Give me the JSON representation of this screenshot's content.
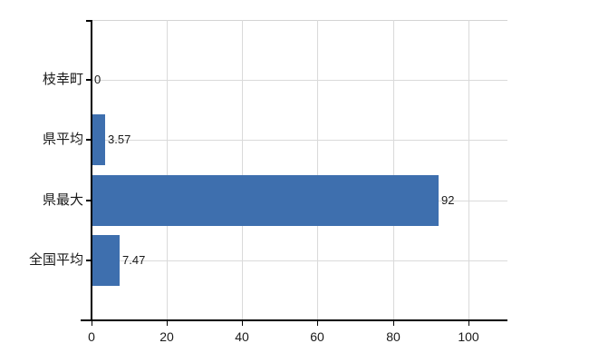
{
  "chart_data": {
    "type": "bar",
    "orientation": "horizontal",
    "title": "",
    "categories": [
      "枝幸町",
      "県平均",
      "県最大",
      "全国平均"
    ],
    "values": [
      0,
      3.57,
      92,
      7.47
    ],
    "value_labels": [
      "0",
      "3.57",
      "92",
      "7.47"
    ],
    "x_ticks": [
      0,
      20,
      40,
      60,
      80,
      100
    ],
    "x_tick_labels": [
      "0",
      "20",
      "40",
      "60",
      "80",
      "100"
    ],
    "xlim": [
      0,
      110.4
    ],
    "grid": true,
    "legend": false,
    "colors": {
      "bar": "#3e6fae",
      "grid": "#dadada",
      "top_border": "#d4d4d4",
      "axis": "#000000",
      "text": "#1a1a1a",
      "background": "#ffffff"
    }
  }
}
